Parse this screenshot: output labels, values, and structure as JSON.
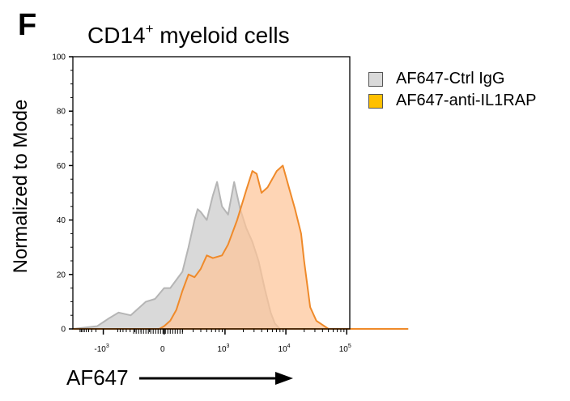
{
  "panel_letter": "F",
  "title_main": "CD14",
  "title_sup": "+",
  "title_rest": " myeloid cells",
  "colors": {
    "ctrl_fill": "#d9d9d9",
    "ctrl_stroke": "#b5b5b5",
    "anti_fill": "#fdc599",
    "anti_stroke": "#ef8a2a",
    "legend_anti": "#ffc000"
  },
  "chart_data": {
    "type": "area",
    "title": "CD14+ myeloid cells",
    "xlabel": "AF647",
    "ylabel": "Normalized to Mode",
    "x_scale": "biexponential",
    "ylim": [
      0,
      100
    ],
    "yticks": [
      0,
      20,
      40,
      60,
      80,
      100
    ],
    "xticks": [
      {
        "base": "-10",
        "exp": "3"
      },
      {
        "base": "0",
        "exp": ""
      },
      {
        "base": "10",
        "exp": "3"
      },
      {
        "base": "10",
        "exp": "4"
      },
      {
        "base": "10",
        "exp": "5"
      }
    ],
    "legend": [
      "AF647-Ctrl IgG",
      "AF647-anti-IL1RAP"
    ],
    "legend_position": "right",
    "series": [
      {
        "name": "AF647-Ctrl IgG",
        "points": [
          [
            -1.5,
            0
          ],
          [
            -1.1,
            1
          ],
          [
            -0.9,
            4
          ],
          [
            -0.75,
            6
          ],
          [
            -0.55,
            5
          ],
          [
            -0.4,
            8
          ],
          [
            -0.3,
            10
          ],
          [
            -0.15,
            11
          ],
          [
            0,
            15
          ],
          [
            0.1,
            15
          ],
          [
            0.2,
            18
          ],
          [
            0.3,
            21
          ],
          [
            0.4,
            30
          ],
          [
            0.5,
            40
          ],
          [
            0.55,
            44
          ],
          [
            0.6,
            43
          ],
          [
            0.7,
            40
          ],
          [
            0.8,
            49
          ],
          [
            0.87,
            54
          ],
          [
            0.95,
            45
          ],
          [
            1.05,
            42
          ],
          [
            1.15,
            54
          ],
          [
            1.25,
            44
          ],
          [
            1.35,
            37
          ],
          [
            1.45,
            32
          ],
          [
            1.55,
            25
          ],
          [
            1.65,
            15
          ],
          [
            1.75,
            6
          ],
          [
            1.82,
            2
          ],
          [
            1.9,
            0
          ],
          [
            4,
            0
          ]
        ]
      },
      {
        "name": "AF647-anti-IL1RAP",
        "points": [
          [
            -1.5,
            0
          ],
          [
            -0.08,
            0
          ],
          [
            0,
            1
          ],
          [
            0.1,
            3
          ],
          [
            0.2,
            7
          ],
          [
            0.3,
            14
          ],
          [
            0.4,
            20
          ],
          [
            0.5,
            19
          ],
          [
            0.6,
            22
          ],
          [
            0.7,
            27
          ],
          [
            0.8,
            26
          ],
          [
            0.95,
            27
          ],
          [
            1.05,
            31
          ],
          [
            1.2,
            40
          ],
          [
            1.35,
            51
          ],
          [
            1.45,
            58
          ],
          [
            1.52,
            57
          ],
          [
            1.6,
            50
          ],
          [
            1.7,
            52
          ],
          [
            1.85,
            58
          ],
          [
            1.95,
            60
          ],
          [
            2.05,
            52
          ],
          [
            2.15,
            44
          ],
          [
            2.25,
            35
          ],
          [
            2.3,
            25
          ],
          [
            2.4,
            8
          ],
          [
            2.5,
            3
          ],
          [
            2.7,
            0
          ],
          [
            4,
            0
          ]
        ]
      }
    ]
  }
}
